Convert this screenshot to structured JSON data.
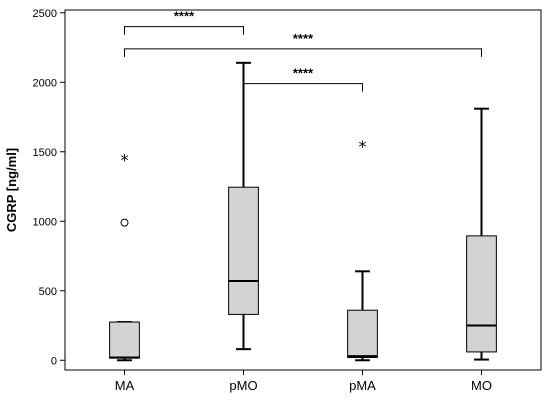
{
  "chart_data": {
    "type": "boxplot",
    "title": "",
    "xlabel": "",
    "ylabel": "CGRP [ng/ml]",
    "ylim": [
      -70,
      2520
    ],
    "yticks": [
      0,
      500,
      1000,
      1500,
      2000,
      2500
    ],
    "ytick_labels": [
      "0",
      "500",
      "1000",
      "1500",
      "2000",
      "2500"
    ],
    "categories": [
      "MA",
      "pMO",
      "pMA",
      "MO"
    ],
    "box_fill": "#d3d3d3",
    "stroke_color": "#000000",
    "background": "#ffffff",
    "grid": false,
    "boxes": [
      {
        "category": "MA",
        "min": 0,
        "q1": 15,
        "median": 20,
        "q3": 275,
        "max": 275,
        "outliers": [
          {
            "value": 990,
            "marker": "circle",
            "symbol": ""
          },
          {
            "value": 1450,
            "marker": "star",
            "symbol": "*"
          }
        ]
      },
      {
        "category": "pMO",
        "min": 80,
        "q1": 330,
        "median": 570,
        "q3": 1245,
        "max": 2140,
        "outliers": []
      },
      {
        "category": "pMA",
        "min": 0,
        "q1": 20,
        "median": 30,
        "q3": 360,
        "max": 640,
        "outliers": [
          {
            "value": 1550,
            "marker": "star",
            "symbol": "*"
          }
        ]
      },
      {
        "category": "MO",
        "min": 5,
        "q1": 60,
        "median": 250,
        "q3": 895,
        "max": 1810,
        "outliers": []
      }
    ],
    "annotations": [
      {
        "from": "MA",
        "to": "pMO",
        "y": 2400,
        "label": "****"
      },
      {
        "from": "pMO",
        "to": "pMA",
        "y": 1990,
        "label": "****"
      },
      {
        "from": "MA",
        "to": "MO",
        "y": 2240,
        "label": "****"
      }
    ]
  }
}
